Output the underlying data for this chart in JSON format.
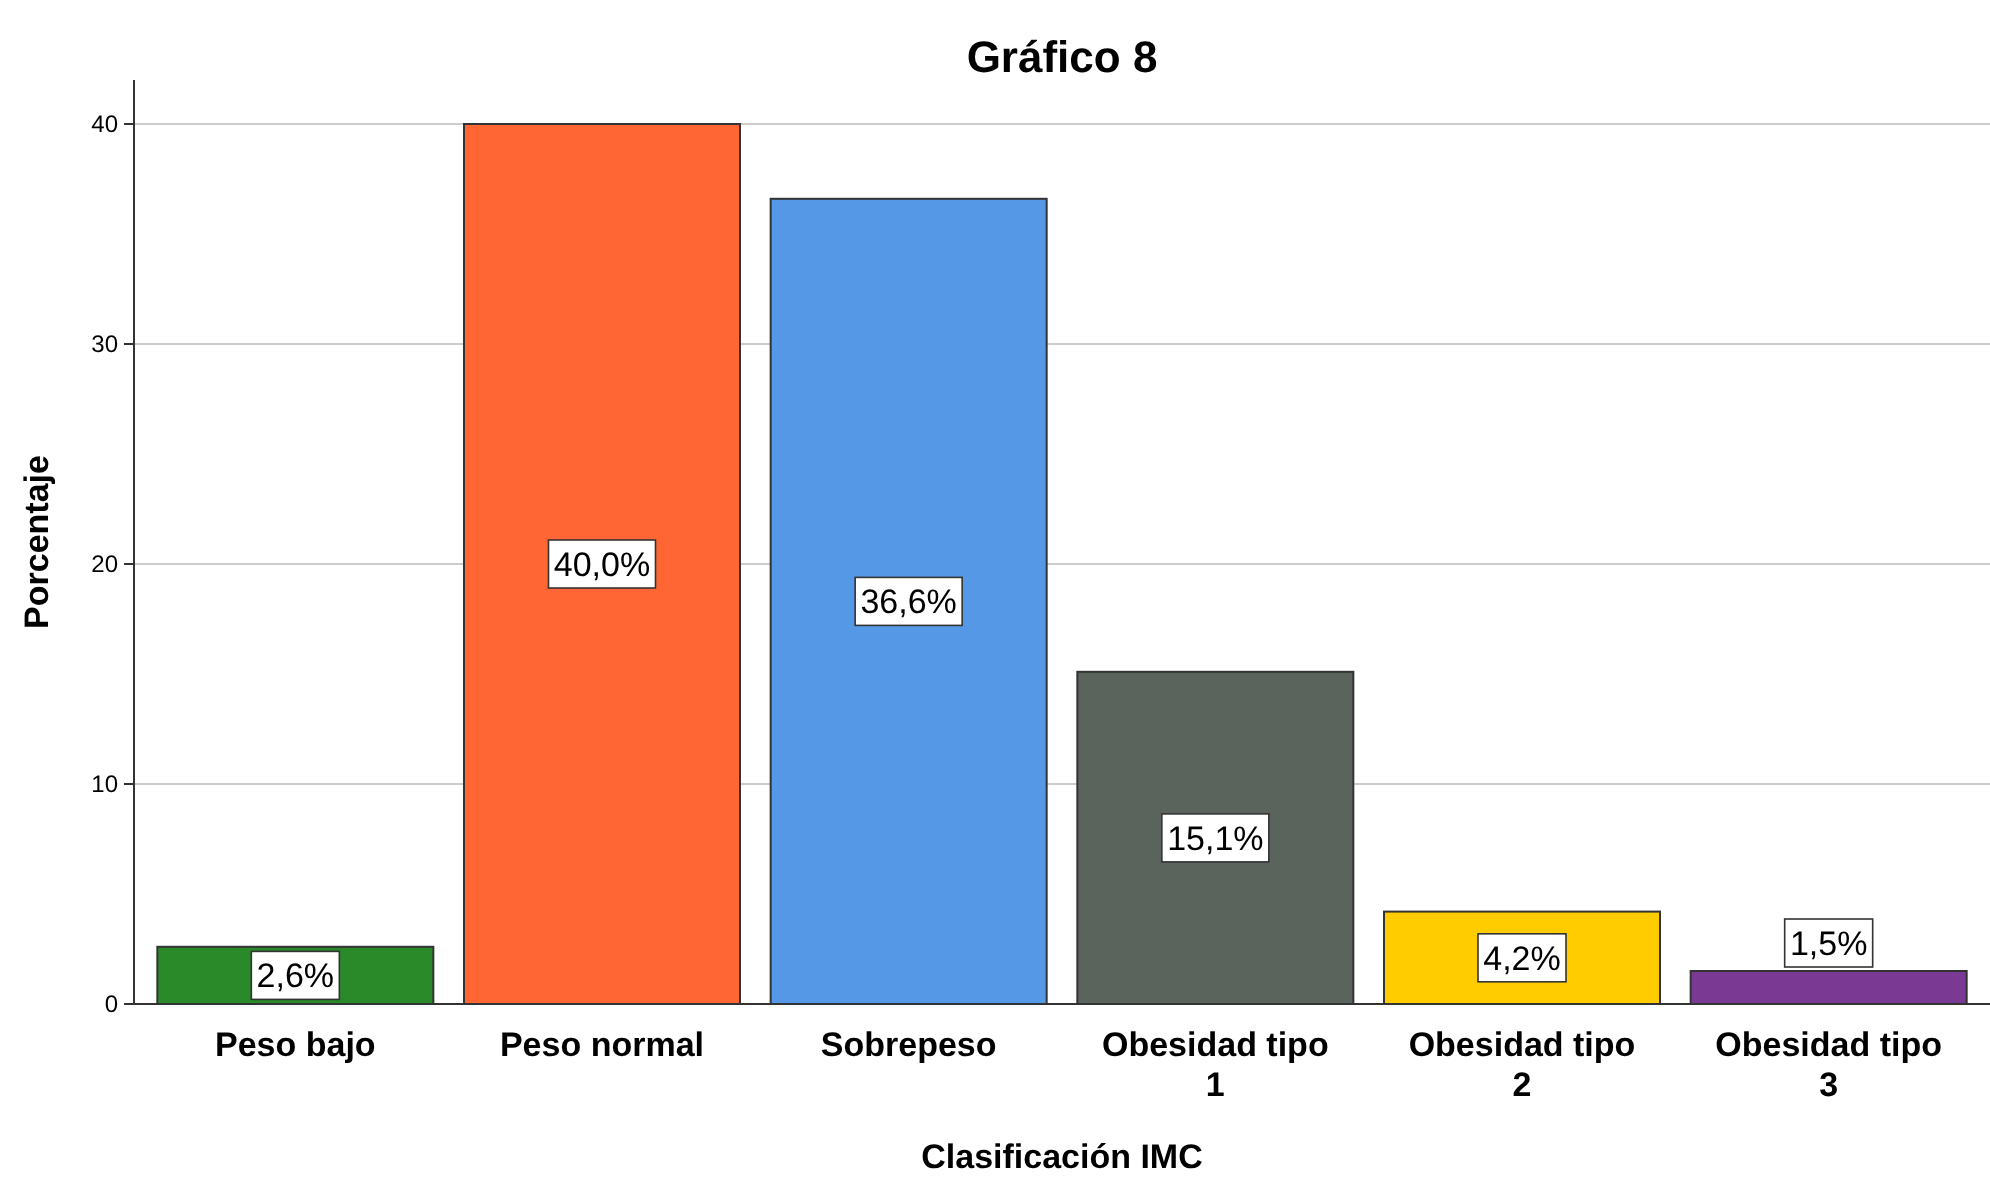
{
  "chart_data": {
    "type": "bar",
    "title": "Gráfico 8",
    "xlabel": "Clasificación IMC",
    "ylabel": "Porcentaje",
    "categories": [
      "Peso bajo",
      "Peso normal",
      "Sobrepeso",
      "Obesidad tipo 1",
      "Obesidad tipo 2",
      "Obesidad tipo 3"
    ],
    "values": [
      2.6,
      40.0,
      36.6,
      15.1,
      4.2,
      1.5
    ],
    "colors": [
      "#2a8a2a",
      "#ff6633",
      "#5599e6",
      "#5a635c",
      "#ffcc00",
      "#7a3a93"
    ],
    "value_labels": [
      "2,6%",
      "40,0%",
      "36,6%",
      "15,1%",
      "4,2%",
      "1,5%"
    ],
    "ylim": [
      0,
      42
    ],
    "yticks": [
      0,
      10,
      20,
      30,
      40
    ],
    "grid": "y"
  }
}
